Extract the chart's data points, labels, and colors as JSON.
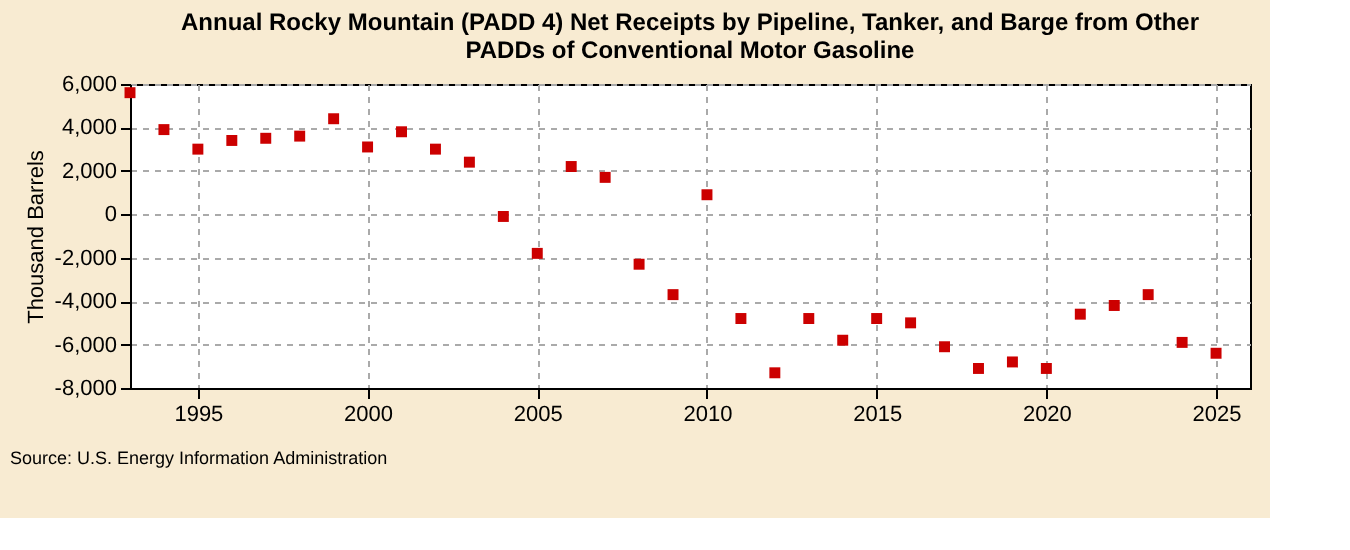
{
  "chart_data": {
    "type": "scatter",
    "title": [
      "Annual Rocky Mountain (PADD 4) Net Receipts by Pipeline, Tanker, and Barge from Other",
      "PADDs of Conventional Motor Gasoline"
    ],
    "ylabel": "Thousand Barrels",
    "annotations": [
      "Source: U.S. Energy Information Administration"
    ],
    "x": [
      1993,
      1994,
      1995,
      1996,
      1997,
      1998,
      1999,
      2000,
      2001,
      2002,
      2003,
      2004,
      2005,
      2006,
      2007,
      2008,
      2009,
      2010,
      2011,
      2012,
      2013,
      2014,
      2015,
      2016,
      2017,
      2018,
      2019,
      2020,
      2021,
      2022,
      2023,
      2024,
      2025
    ],
    "series": [
      {
        "color": "#cc0000",
        "values": [
          5600,
          3900,
          3000,
          3400,
          3500,
          3600,
          4400,
          3100,
          3800,
          3000,
          2400,
          -100,
          -1800,
          2200,
          1700,
          -2300,
          -3700,
          900,
          -4800,
          -7300,
          -4800,
          -5800,
          -4800,
          -5000,
          -6100,
          -7100,
          -6800,
          -7100,
          -4600,
          -4200,
          -3700,
          -5900,
          -6400
        ]
      }
    ],
    "xlim": [
      1993,
      2026
    ],
    "xticks": [
      1995,
      2000,
      2005,
      2010,
      2015,
      2020,
      2025
    ],
    "ylim": [
      -8000,
      6000
    ],
    "yticks": [
      {
        "value": -8000,
        "label": "-8,000"
      },
      {
        "value": -6000,
        "label": "-6,000"
      },
      {
        "value": -4000,
        "label": "-4,000"
      },
      {
        "value": -2000,
        "label": "-2,000"
      },
      0,
      {
        "value": 2000,
        "label": "2,000"
      },
      {
        "value": 4000,
        "label": "4,000"
      },
      {
        "value": 6000,
        "label": "6,000"
      }
    ],
    "grid": true,
    "marker": "square",
    "legend": false
  }
}
